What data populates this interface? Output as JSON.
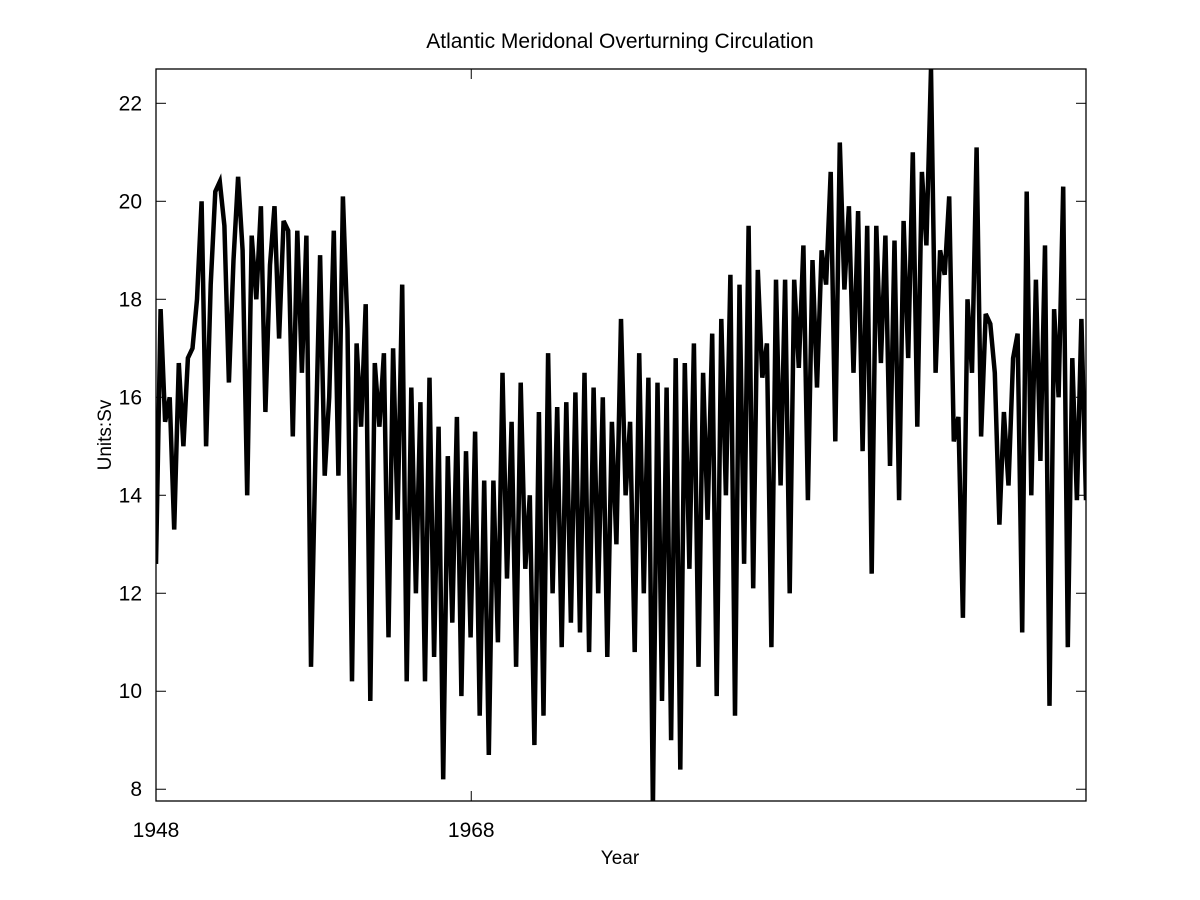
{
  "chart_data": {
    "type": "line",
    "title": "Atlantic Meridonal Overturning Circulation",
    "xlabel": "Year",
    "ylabel": "Units:Sv",
    "xlim": [
      1948,
      2007
    ],
    "ylim": [
      7.76,
      22.7
    ],
    "xticks": [
      1948,
      1968
    ],
    "xtick_labels": [
      "1948",
      "1968"
    ],
    "yticks": [
      8,
      10,
      12,
      14,
      16,
      18,
      20,
      22
    ],
    "ytick_labels": [
      "8",
      "10",
      "12",
      "14",
      "16",
      "18",
      "20",
      "22"
    ],
    "grid": false,
    "line_color": "#000000",
    "series": [
      {
        "name": "AMOC",
        "x_start": 1948.0,
        "x_end": 2007.0,
        "values": [
          12.6,
          17.8,
          15.5,
          16,
          13.3,
          16.7,
          15,
          16.8,
          17,
          18,
          20,
          15,
          18.3,
          20.2,
          20.4,
          19.5,
          16.3,
          18.8,
          20.5,
          19,
          14,
          19.3,
          18,
          19.9,
          15.7,
          18.7,
          19.9,
          17.2,
          19.6,
          19.4,
          15.2,
          19.4,
          16.5,
          19.3,
          10.5,
          15,
          18.9,
          14.4,
          16,
          19.4,
          14.4,
          20.1,
          17.4,
          10.2,
          17.1,
          15.4,
          17.9,
          9.8,
          16.7,
          15.4,
          16.9,
          11.1,
          17,
          13.5,
          18.3,
          10.2,
          16.2,
          12,
          15.9,
          10.2,
          16.4,
          10.7,
          15.4,
          8.2,
          14.8,
          11.4,
          15.6,
          9.9,
          14.9,
          11.1,
          15.3,
          9.5,
          14.3,
          8.7,
          14.3,
          11,
          16.5,
          12.3,
          15.5,
          10.5,
          16.3,
          12.5,
          14,
          8.9,
          15.7,
          9.5,
          16.9,
          12,
          15.8,
          10.9,
          15.9,
          11.4,
          16.1,
          11.2,
          16.5,
          10.8,
          16.2,
          12,
          16,
          10.7,
          15.5,
          13,
          17.6,
          14,
          15.5,
          10.8,
          16.9,
          12,
          16.4,
          7.6,
          16.3,
          9.8,
          16.2,
          9,
          16.8,
          8.4,
          16.7,
          12.5,
          17.1,
          10.5,
          16.5,
          13.5,
          17.3,
          9.9,
          17.6,
          14,
          18.5,
          9.5,
          18.3,
          12.6,
          19.5,
          12.1,
          18.6,
          16.4,
          17.1,
          10.9,
          18.4,
          14.2,
          18.4,
          12,
          18.4,
          16.6,
          19.1,
          13.9,
          18.8,
          16.2,
          19,
          18.3,
          20.6,
          15.1,
          21.2,
          18.2,
          19.9,
          16.5,
          19.8,
          14.9,
          19.5,
          12.4,
          19.5,
          16.7,
          19.3,
          14.6,
          19.2,
          13.9,
          19.6,
          16.8,
          21,
          15.4,
          20.6,
          19.1,
          22.7,
          16.5,
          19,
          18.5,
          20.1,
          15.1,
          15.6,
          11.5,
          18,
          16.5,
          21.1,
          15.2,
          17.7,
          17.5,
          16.5,
          13.4,
          15.7,
          14.2,
          16.8,
          17.3,
          11.2,
          20.2,
          14,
          18.4,
          14.7,
          19.1,
          9.7,
          17.8,
          16,
          20.3,
          10.9,
          16.8,
          13.9,
          17.6,
          13.9
        ]
      }
    ]
  }
}
